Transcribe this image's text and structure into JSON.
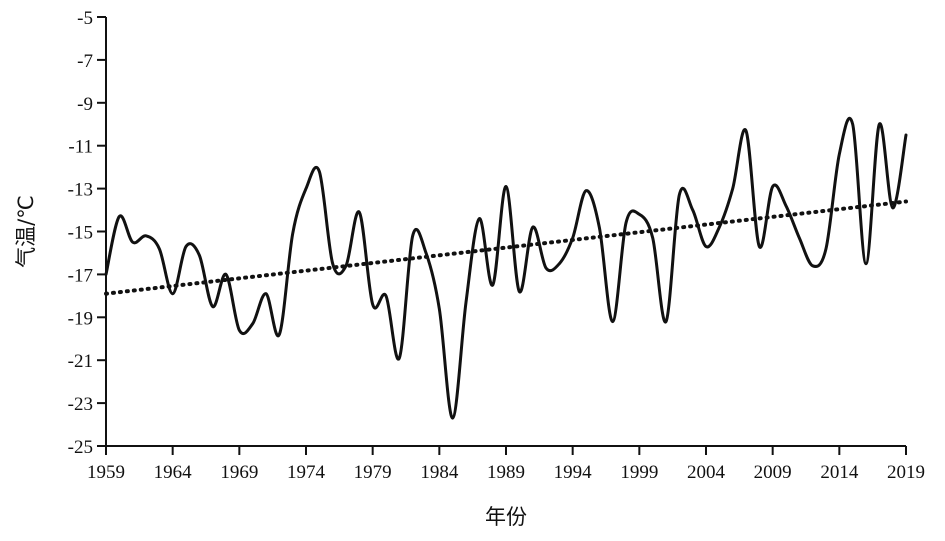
{
  "chart_data": {
    "type": "line",
    "title": "",
    "xlabel": "年份",
    "ylabel": "气温/℃",
    "xlim": [
      1959,
      2019
    ],
    "ylim": [
      -25,
      -5
    ],
    "x_ticks": [
      "1959",
      "1964",
      "1969",
      "1974",
      "1979",
      "1984",
      "1989",
      "1994",
      "1999",
      "2004",
      "2009",
      "2014",
      "2019"
    ],
    "y_ticks": [
      "-5",
      "-7",
      "-9",
      "-11",
      "-13",
      "-15",
      "-17",
      "-19",
      "-21",
      "-23",
      "-25"
    ],
    "grid": false,
    "legend": "none",
    "series": [
      {
        "style": "solid",
        "x": [
          1959,
          1960,
          1961,
          1962,
          1963,
          1964,
          1965,
          1966,
          1967,
          1968,
          1969,
          1970,
          1971,
          1972,
          1973,
          1974,
          1975,
          1976,
          1977,
          1978,
          1979,
          1980,
          1981,
          1982,
          1983,
          1984,
          1985,
          1986,
          1987,
          1988,
          1989,
          1990,
          1991,
          1992,
          1993,
          1994,
          1995,
          1996,
          1997,
          1998,
          1999,
          2000,
          2001,
          2002,
          2003,
          2004,
          2005,
          2006,
          2007,
          2008,
          2009,
          2010,
          2011,
          2012,
          2013,
          2014,
          2015,
          2016,
          2017,
          2018,
          2019
        ],
        "values": [
          -17.0,
          -14.3,
          -15.5,
          -15.2,
          -15.8,
          -17.9,
          -15.7,
          -16.1,
          -18.5,
          -17.0,
          -19.6,
          -19.3,
          -17.9,
          -19.8,
          -15.1,
          -13.0,
          -12.2,
          -16.5,
          -16.6,
          -14.1,
          -18.4,
          -18.0,
          -20.9,
          -15.2,
          -16.0,
          -18.6,
          -23.7,
          -18.3,
          -14.4,
          -17.5,
          -12.9,
          -17.8,
          -14.8,
          -16.7,
          -16.5,
          -15.3,
          -13.1,
          -14.8,
          -19.2,
          -14.6,
          -14.2,
          -15.3,
          -19.2,
          -13.3,
          -14.0,
          -15.7,
          -14.8,
          -13.0,
          -10.3,
          -15.7,
          -12.9,
          -13.8,
          -15.3,
          -16.6,
          -15.8,
          -11.4,
          -10.0,
          -16.5,
          -10.0,
          -13.9,
          -10.5
        ]
      },
      {
        "style": "dotted",
        "x": [
          1959,
          2019
        ],
        "values": [
          -17.9,
          -13.6
        ]
      }
    ]
  }
}
